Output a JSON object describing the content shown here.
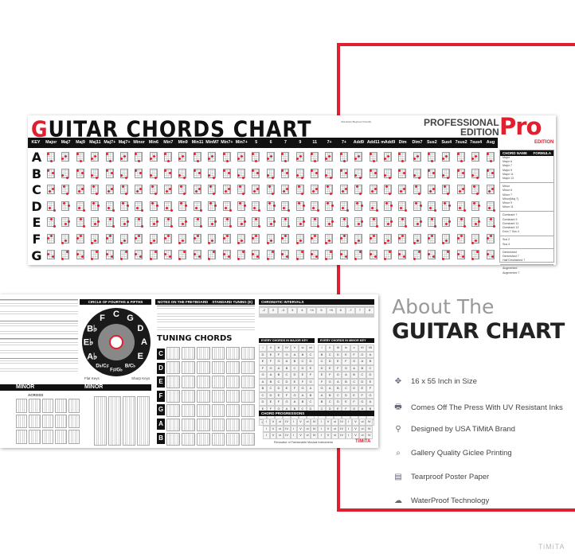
{
  "poster_top": {
    "title_first_letter": "G",
    "title_rest": "UITAR CHORDS CHART",
    "blurb": "Absolutely Beginner Friendly",
    "edition_line1": "PROFESSIONAL",
    "edition_line2": "EDITION",
    "pro_badge": "Pro",
    "pro_small": "EDITION",
    "key_header": "KEY",
    "chord_columns": [
      "Major",
      "Maj7",
      "Maj9",
      "Maj11",
      "Maj7+",
      "Maj7+",
      "Minor",
      "Min6",
      "Min7",
      "Min9",
      "Min11",
      "MinM7",
      "Min7+",
      "Min7+",
      "5",
      "6",
      "7",
      "9",
      "11",
      "7+",
      "7+",
      "Add9",
      "Add11",
      "mAdd9",
      "Dim",
      "Dim7",
      "Sus2",
      "Sus4",
      "7sus2",
      "7sus4",
      "Aug"
    ],
    "keys": [
      "A",
      "B",
      "C",
      "D",
      "E",
      "F",
      "G"
    ],
    "formula_header": {
      "name": "CHORD NAME",
      "formula": "FORMULA"
    },
    "formula_groups": [
      [
        "Major",
        "Major 6",
        "Major 7",
        "Major 9",
        "Major 11",
        "Major 13"
      ],
      [
        "Minor",
        "Minor 6",
        "Minor 7",
        "Minor(Maj 7)",
        "Minor 9",
        "Minor 11"
      ],
      [
        "Dominant 7",
        "Dominant 9",
        "Dominant 11",
        "Dominant 13",
        "Dom 7 Sus 4"
      ],
      [
        "Sus 2",
        "Sus 4"
      ],
      [
        "Diminished",
        "Diminished 7",
        "Half Diminished 7"
      ],
      [
        "Augmented",
        "Augmented 7"
      ]
    ]
  },
  "poster_bottom": {
    "circle_title": "CIRCLE OF FOURTHS & FIFTHS",
    "circle_keys": [
      "C",
      "G",
      "D",
      "A",
      "E",
      "B/C♭",
      "F♯/G♭",
      "D♭/C♯",
      "A♭",
      "E♭",
      "B♭",
      "F"
    ],
    "flat_keys": "Flat Keys",
    "sharp_keys": "Sharp Keys",
    "notes_title": "NOTES ON THE FRETBOARD",
    "standard_tuning": "STANDARD TUNING (E)",
    "tuning_title": "TUNING CHORDS",
    "tuning_keys": [
      "C",
      "D",
      "E",
      "F",
      "G",
      "A",
      "B"
    ],
    "minor_1": "MINOR",
    "minor_2": "MINOR",
    "across": "ACROSS",
    "chromatic_title": "CHROMATIC INTERVALS",
    "major_key_title": "EVERY CHORDS IN     MAJOR KEY",
    "minor_key_title": "EVERY CHORDS IN     MINOR KEY",
    "progressions_title": "CHORD PROGRESSIONS",
    "tagline": "Renovator of Fashionable Musical Instruments",
    "brand": "TiMiTA"
  },
  "about": {
    "line1": "About The",
    "line2": "GUITAR CHART",
    "features": [
      {
        "icon": "move-arrows-icon",
        "glyph": "✥",
        "text": "16 x 55 Inch  in Size"
      },
      {
        "icon": "printer-icon",
        "glyph": "🖶",
        "text": "Comes Off The Press With UV Resistant Inks"
      },
      {
        "icon": "location-pin-icon",
        "glyph": "⚲",
        "text": "Designed by USA TiMitA Brand"
      },
      {
        "icon": "magnifier-icon",
        "glyph": "⌕",
        "text": "Gallery Quality Giclee Printing"
      },
      {
        "icon": "poster-paper-icon",
        "glyph": "▤",
        "text": "Tearproof Poster Paper"
      },
      {
        "icon": "rain-cloud-icon",
        "glyph": "☁",
        "text": "WaterProof Technology"
      }
    ]
  },
  "watermark": "TiMiTA",
  "colors": {
    "accent": "#e0202e",
    "dark": "#111111"
  }
}
